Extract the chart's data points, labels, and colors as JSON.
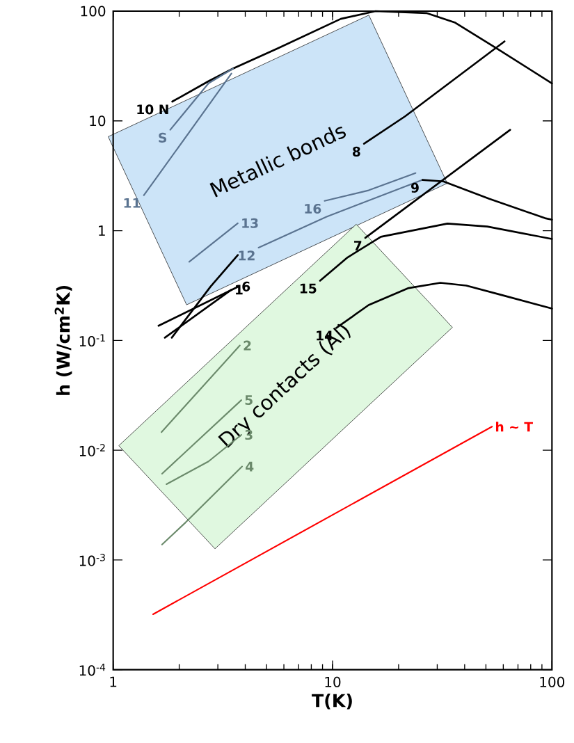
{
  "chart_data": {
    "type": "line",
    "xlabel": "T(K)",
    "ylabel": "h (W/cm$^{2}$K)",
    "log": "xy",
    "xlim": [
      1,
      100
    ],
    "ylim": [
      0.0001,
      100
    ],
    "xticks": [
      1,
      10,
      100
    ],
    "yticks": [
      {
        "value": 0.0001,
        "label": "10$^{-4}$"
      },
      {
        "value": 0.001,
        "label": "10$^{-3}$"
      },
      {
        "value": 0.01,
        "label": "10$^{-2}$"
      },
      {
        "value": 0.1,
        "label": "10$^{-1}$"
      },
      1,
      10,
      100
    ],
    "marker": "none",
    "grid": false,
    "annotations": [
      "Metallic bonds",
      "Dry contacts (Al)"
    ],
    "series": [
      {
        "name": "10 N",
        "color": "#000000",
        "x": [
          1.86,
          2.72,
          3.52,
          5.65,
          10.9,
          15.7,
          26.8,
          36,
          55.7,
          100
        ],
        "values": [
          15,
          23,
          30,
          46,
          85,
          100,
          96,
          79,
          46,
          22
        ]
      },
      {
        "name": "S",
        "color": "#5a7390",
        "x": [
          1.82,
          2.72,
          3.52
        ],
        "values": [
          8.3,
          22,
          30
        ]
      },
      {
        "name": "11",
        "color": "#5a7390",
        "x": [
          1.38,
          3.46
        ],
        "values": [
          2.1,
          27
        ]
      },
      {
        "name": "8",
        "color": "#000000",
        "x": [
          13.9,
          21.4,
          60.8
        ],
        "values": [
          6.2,
          11,
          53
        ]
      },
      {
        "name": "13",
        "color": "#5a7390",
        "x": [
          3.7,
          2.22
        ],
        "values": [
          1.17,
          0.52
        ]
      },
      {
        "name": "16",
        "color": "#5a7390",
        "x": [
          9.2,
          14.6,
          23.9
        ],
        "values": [
          1.87,
          2.33,
          3.35
        ]
      },
      {
        "name": "12",
        "color": "#5a7390",
        "x": [
          4.6,
          9.4,
          25.7
        ],
        "values": [
          0.7,
          1.34,
          2.9
        ]
      },
      {
        "name": "9",
        "color": "#000000",
        "x": [
          25.7,
          32,
          51.8,
          92.9,
          100
        ],
        "values": [
          2.9,
          2.81,
          1.95,
          1.3,
          1.26
        ]
      },
      {
        "color": "#000000",
        "x": [
          1.85,
          2.78,
          3.7
        ],
        "values": [
          0.106,
          0.31,
          0.6
        ]
      },
      {
        "name": "1",
        "color": "#000000",
        "x": [
          3.46,
          1.72
        ],
        "values": [
          0.29,
          0.106
        ]
      },
      {
        "name": "6",
        "color": "#000000",
        "x": [
          3.73,
          1.61
        ],
        "values": [
          0.31,
          0.136
        ]
      },
      {
        "name": "7",
        "color": "#000000",
        "x": [
          14.1,
          64.5
        ],
        "values": [
          0.86,
          8.3
        ]
      },
      {
        "name": "15",
        "color": "#000000",
        "x": [
          8.77,
          11.7,
          16.6,
          33.4,
          50.7,
          100
        ],
        "values": [
          0.35,
          0.57,
          0.88,
          1.16,
          1.09,
          0.84
        ]
      },
      {
        "name": "14",
        "color": "#000000",
        "x": [
          10.4,
          14.6,
          22.2,
          31,
          40.7,
          58.7,
          100
        ],
        "values": [
          0.13,
          0.21,
          0.3,
          0.335,
          0.316,
          0.26,
          0.195
        ]
      },
      {
        "name": "2",
        "color": "#6b8a6b",
        "x": [
          3.78,
          1.66
        ],
        "values": [
          0.09,
          0.0146
        ]
      },
      {
        "name": "5",
        "color": "#6b8a6b",
        "x": [
          3.84,
          1.67
        ],
        "values": [
          0.0286,
          0.0061
        ]
      },
      {
        "name": "3",
        "color": "#6b8a6b",
        "x": [
          3.84,
          2.72,
          1.75
        ],
        "values": [
          0.0138,
          0.0079,
          0.0049
        ]
      },
      {
        "name": "4",
        "color": "#6b8a6b",
        "x": [
          3.87,
          2.14,
          1.67
        ],
        "values": [
          0.0071,
          0.0022,
          0.00138
        ]
      },
      {
        "name": "h ~ T",
        "color": "#ff0000",
        "x": [
          53.3,
          1.52
        ],
        "values": [
          0.0164,
          0.00032
        ]
      }
    ]
  }
}
